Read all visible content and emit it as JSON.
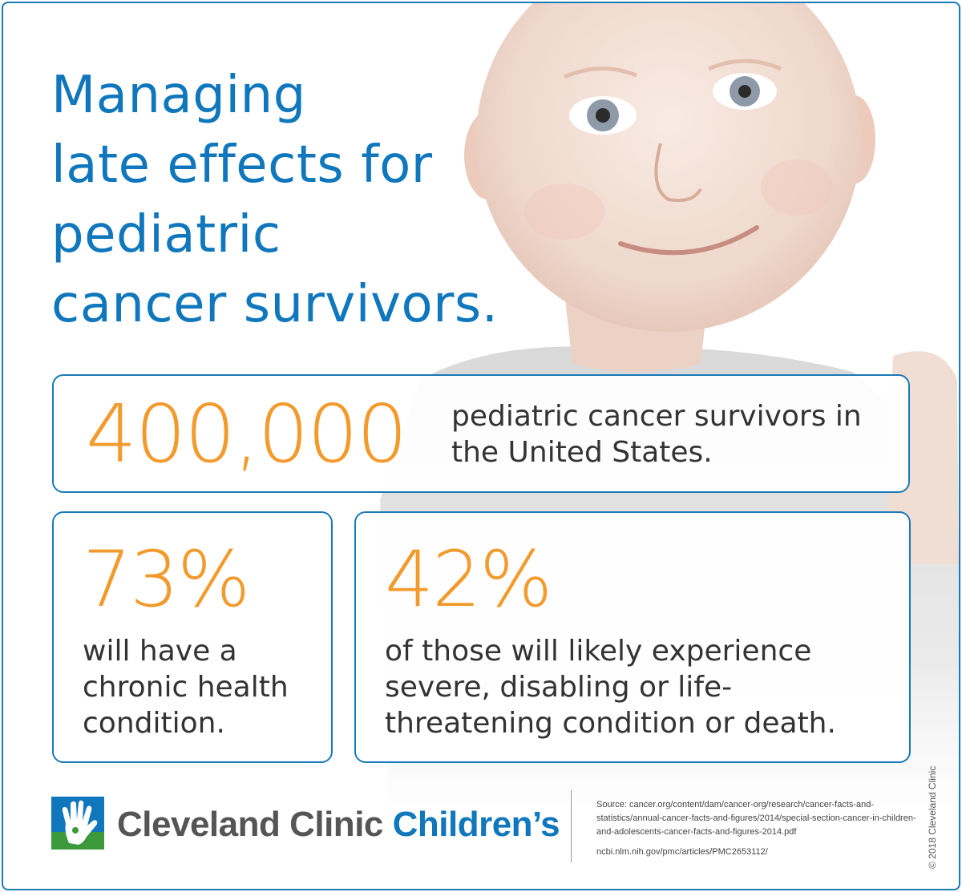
{
  "title_lines": [
    "Managing",
    "late effects for",
    "pediatric",
    "cancer survivors."
  ],
  "stats": [
    {
      "value": "400,000",
      "text": "pediatric cancer survivors in the United States."
    },
    {
      "value": "73%",
      "text": "will have a chronic health condition."
    },
    {
      "value": "42%",
      "text": "of those will likely experience severe, disabling or life-threatening condition or death."
    }
  ],
  "brand": {
    "part1": "Cleveland Clinic ",
    "part2": "Children’s"
  },
  "sources": {
    "line1": "Source: cancer.org/content/dam/cancer-org/research/cancer-facts-and-statistics/annual-cancer-facts-and-figures/2014/special-section-cancer-in-children-and-adolescents-cancer-facts-and-figures-2014.pdf",
    "line2": "ncbi.nlm.nih.gov/pmc/articles/PMC2653112/"
  },
  "copyright": "© 2018 Cleveland Clinic",
  "colors": {
    "blue": "#1077bd",
    "orange": "#f39a2d",
    "border": "#1b7ab8"
  }
}
